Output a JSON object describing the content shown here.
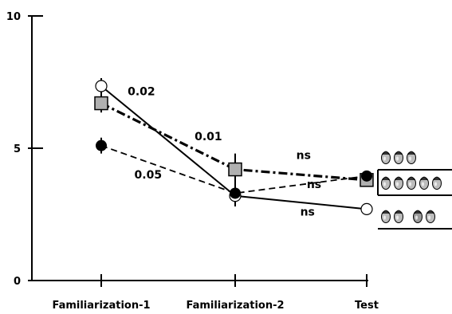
{
  "chart_data": {
    "type": "line",
    "categories": [
      "Familiarization-1",
      "Familiarization-2",
      "Test"
    ],
    "ylim": [
      0,
      10
    ],
    "yticks": [
      {
        "value": 0,
        "label": "0"
      },
      {
        "value": 5,
        "label": "5"
      },
      {
        "value": 10,
        "label": "10"
      }
    ],
    "grid": false,
    "series": [
      {
        "marker": "open-circle",
        "line": "solid",
        "values": [
          7.35,
          3.2,
          2.7
        ],
        "errors": [
          0.3,
          0.4,
          0.2
        ]
      },
      {
        "marker": "gray-square",
        "line": "dash-dot",
        "values": [
          6.7,
          4.2,
          3.8
        ],
        "errors": [
          0.35,
          0.6,
          0.25
        ]
      },
      {
        "marker": "filled-circle",
        "line": "dashed",
        "values": [
          5.1,
          3.3,
          3.95
        ],
        "errors": [
          0.3,
          0.5,
          0.2
        ]
      }
    ],
    "annotations": [
      {
        "text": "0.02",
        "x": 0.3,
        "y": 7.0
      },
      {
        "text": "0.01",
        "x": 0.8,
        "y": 5.3
      },
      {
        "text": "0.05",
        "x": 0.35,
        "y": 3.85
      },
      {
        "text": "ns",
        "x": 1.52,
        "y": 4.6
      },
      {
        "text": "ns",
        "x": 1.6,
        "y": 3.5
      },
      {
        "text": "ns",
        "x": 1.55,
        "y": 2.45
      }
    ],
    "colors": {
      "square_fill": "#b0b0b0",
      "ink": "#000000"
    }
  }
}
